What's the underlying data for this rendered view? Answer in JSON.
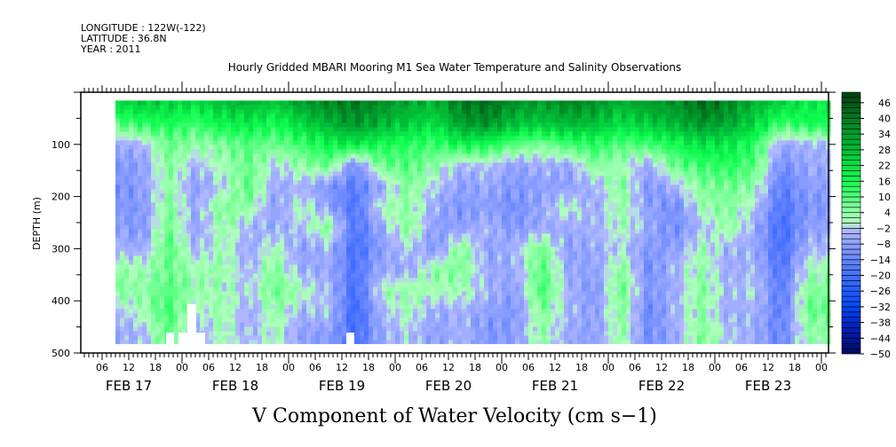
{
  "header": {
    "longitude": "LONGITUDE : 122W(-122)",
    "latitude": "LATITUDE : 36.8N",
    "year": "YEAR : 2011"
  },
  "chart_data": {
    "type": "heatmap",
    "title": "Hourly Gridded MBARI Mooring M1 Sea Water Temperature and Salinity Observations",
    "xlabel": "V Component of Water Velocity (cm s−1)",
    "ylabel": "DEPTH (m)",
    "ylim": [
      500,
      0
    ],
    "y_ticks": [
      100,
      200,
      300,
      400,
      500
    ],
    "x_range_hours": [
      1,
      171
    ],
    "x_hour_tick_labels": [
      "06",
      "12",
      "18",
      "00",
      "06",
      "12",
      "18",
      "00",
      "06",
      "12",
      "18",
      "00",
      "06",
      "12",
      "18",
      "00",
      "06",
      "12",
      "18",
      "00",
      "06",
      "12",
      "18",
      "00",
      "06",
      "12",
      "18",
      "00"
    ],
    "x_day_labels": [
      "FEB 17",
      "FEB 18",
      "FEB 19",
      "FEB 20",
      "FEB 21",
      "FEB 22",
      "FEB 23"
    ],
    "time_hours_since_feb17": [
      9,
      15,
      21,
      27,
      33,
      39,
      45,
      51,
      57,
      63,
      69,
      75,
      81,
      87,
      93,
      99,
      105,
      111,
      117,
      123,
      129,
      135,
      141,
      147,
      153,
      159,
      165
    ],
    "depths": [
      20,
      60,
      100,
      140,
      180,
      220,
      260,
      300,
      340,
      380,
      420,
      460
    ],
    "values": [
      [
        22,
        26,
        24,
        22,
        28,
        30,
        26,
        34,
        38,
        40,
        36,
        32,
        30,
        40,
        42,
        36,
        34,
        38,
        36,
        30,
        34,
        36,
        42,
        38,
        30,
        24,
        20
      ],
      [
        10,
        14,
        16,
        12,
        18,
        20,
        16,
        24,
        30,
        36,
        30,
        26,
        22,
        34,
        36,
        28,
        26,
        30,
        28,
        22,
        26,
        30,
        36,
        32,
        24,
        12,
        16
      ],
      [
        -6,
        -4,
        8,
        4,
        6,
        10,
        8,
        12,
        18,
        20,
        16,
        14,
        12,
        18,
        16,
        10,
        6,
        12,
        14,
        10,
        12,
        16,
        22,
        20,
        14,
        -6,
        -4
      ],
      [
        -10,
        -8,
        6,
        -4,
        2,
        8,
        -2,
        4,
        8,
        -12,
        8,
        10,
        4,
        -4,
        -2,
        -8,
        -4,
        -6,
        6,
        2,
        -6,
        8,
        12,
        14,
        10,
        -12,
        -6
      ],
      [
        -12,
        -8,
        4,
        -8,
        -2,
        10,
        -6,
        -4,
        -10,
        -16,
        -6,
        6,
        -2,
        -8,
        -6,
        -10,
        -8,
        -8,
        -4,
        6,
        -10,
        -4,
        6,
        8,
        4,
        -16,
        -8
      ],
      [
        -10,
        -10,
        6,
        -6,
        6,
        4,
        -8,
        2,
        -8,
        -18,
        2,
        4,
        -6,
        -10,
        -8,
        -12,
        -6,
        2,
        -6,
        4,
        -8,
        -12,
        2,
        6,
        -2,
        -18,
        -10
      ],
      [
        -8,
        -10,
        8,
        -8,
        4,
        -4,
        -6,
        -2,
        6,
        -18,
        -6,
        6,
        -8,
        -8,
        -4,
        -10,
        -6,
        -6,
        -4,
        2,
        -6,
        -12,
        -4,
        4,
        -6,
        -20,
        -8
      ],
      [
        -4,
        -6,
        10,
        -4,
        2,
        -6,
        2,
        -8,
        -4,
        -20,
        -8,
        -2,
        -10,
        6,
        -8,
        -4,
        8,
        -8,
        -6,
        -2,
        -10,
        -8,
        2,
        -4,
        -6,
        -20,
        -4
      ],
      [
        4,
        2,
        8,
        2,
        4,
        -4,
        6,
        -6,
        -6,
        -18,
        -6,
        -6,
        4,
        6,
        -6,
        -6,
        10,
        -6,
        -8,
        6,
        -12,
        -4,
        4,
        -6,
        -4,
        -18,
        2
      ],
      [
        6,
        4,
        10,
        4,
        2,
        -2,
        8,
        2,
        -4,
        -20,
        2,
        4,
        2,
        2,
        -4,
        -8,
        12,
        -4,
        -10,
        8,
        -10,
        -6,
        6,
        -4,
        -2,
        -16,
        6
      ],
      [
        -4,
        2,
        12,
        -2,
        4,
        -6,
        4,
        -4,
        -2,
        -22,
        -4,
        2,
        -6,
        -4,
        -8,
        -10,
        6,
        -4,
        -8,
        6,
        -14,
        -4,
        4,
        -6,
        -4,
        -16,
        8
      ],
      [
        -6,
        -4,
        10,
        -6,
        2,
        -4,
        2,
        -8,
        -8,
        -20,
        -6,
        -2,
        -8,
        -4,
        -10,
        -8,
        4,
        -6,
        -8,
        4,
        -12,
        -6,
        6,
        -2,
        -6,
        -14,
        4
      ]
    ],
    "colorbar": {
      "min": -50,
      "max": 50,
      "step": 2,
      "labels": [
        "46",
        "40",
        "34",
        "28",
        "22",
        "16",
        "10",
        "4",
        "−2",
        "−8",
        "−14",
        "−20",
        "−26",
        "−32",
        "−38",
        "−44",
        "−50"
      ],
      "label_values": [
        46,
        40,
        34,
        28,
        22,
        16,
        10,
        4,
        -2,
        -8,
        -14,
        -20,
        -26,
        -32,
        -38,
        -44,
        -50
      ]
    },
    "colors": {
      "stops": [
        [
          -50,
          "#000a60"
        ],
        [
          -40,
          "#0020c0"
        ],
        [
          -30,
          "#0a50ff"
        ],
        [
          -16,
          "#5a7cff"
        ],
        [
          -2,
          "#b4bcff"
        ],
        [
          0,
          "#b4ffc0"
        ],
        [
          6,
          "#80ff9c"
        ],
        [
          16,
          "#10ff50"
        ],
        [
          28,
          "#00c038"
        ],
        [
          40,
          "#007a20"
        ],
        [
          50,
          "#004010"
        ]
      ]
    }
  }
}
